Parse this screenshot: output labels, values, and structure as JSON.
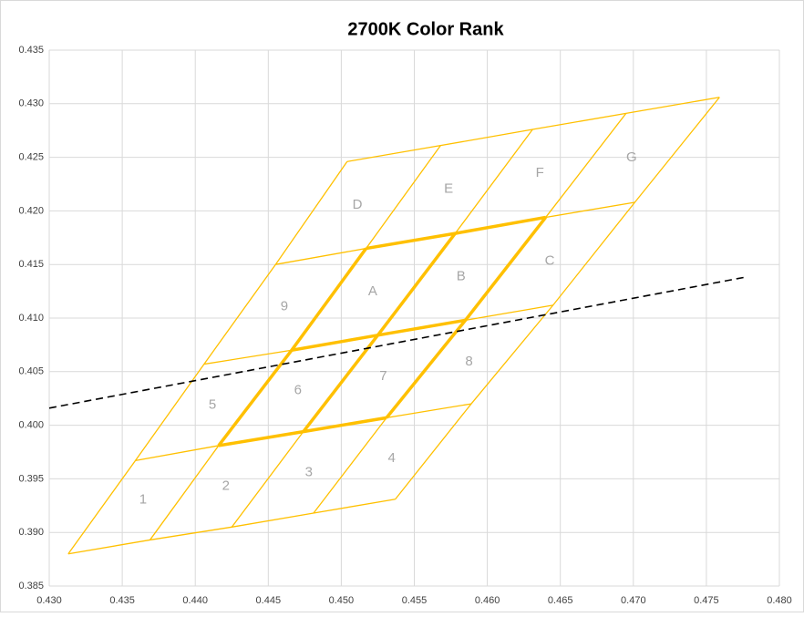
{
  "chart_data": {
    "type": "grid-lines",
    "title": "2700K Color Rank",
    "xlim": [
      0.43,
      0.48
    ],
    "ylim": [
      0.385,
      0.435
    ],
    "xticks": [
      {
        "value": 0.43,
        "label": "0.430"
      },
      {
        "value": 0.435,
        "label": "0.435"
      },
      {
        "value": 0.44,
        "label": "0.440"
      },
      {
        "value": 0.445,
        "label": "0.445"
      },
      {
        "value": 0.45,
        "label": "0.450"
      },
      {
        "value": 0.455,
        "label": "0.455"
      },
      {
        "value": 0.46,
        "label": "0.460"
      },
      {
        "value": 0.465,
        "label": "0.465"
      },
      {
        "value": 0.47,
        "label": "0.470"
      },
      {
        "value": 0.475,
        "label": "0.475"
      },
      {
        "value": 0.48,
        "label": "0.480"
      }
    ],
    "yticks": [
      {
        "value": 0.385,
        "label": "0.385"
      },
      {
        "value": 0.39,
        "label": "0.390"
      },
      {
        "value": 0.395,
        "label": "0.395"
      },
      {
        "value": 0.4,
        "label": "0.400"
      },
      {
        "value": 0.405,
        "label": "0.405"
      },
      {
        "value": 0.41,
        "label": "0.410"
      },
      {
        "value": 0.415,
        "label": "0.415"
      },
      {
        "value": 0.42,
        "label": "0.420"
      },
      {
        "value": 0.425,
        "label": "0.425"
      },
      {
        "value": 0.43,
        "label": "0.430"
      },
      {
        "value": 0.435,
        "label": "0.435"
      }
    ],
    "grid": true,
    "grid_color": "#ffc000",
    "grid_rows": [
      {
        "x": [
          0.4313,
          0.4369,
          0.4425,
          0.4481,
          0.4537
        ],
        "y": [
          0.388,
          0.3893,
          0.3905,
          0.3918,
          0.3931
        ]
      },
      {
        "x": [
          0.4359,
          0.4416,
          0.4474,
          0.4531,
          0.4589
        ],
        "y": [
          0.3967,
          0.3981,
          0.3994,
          0.4007,
          0.402
        ]
      },
      {
        "x": [
          0.4406,
          0.4466,
          0.4525,
          0.4585,
          0.4645
        ],
        "y": [
          0.4057,
          0.407,
          0.4084,
          0.4098,
          0.4112
        ]
      },
      {
        "x": [
          0.4455,
          0.4517,
          0.4578,
          0.464,
          0.4701
        ],
        "y": [
          0.415,
          0.4165,
          0.4179,
          0.4194,
          0.4208
        ]
      },
      {
        "x": [
          0.4504,
          0.4568,
          0.4631,
          0.4695,
          0.4759
        ],
        "y": [
          0.4246,
          0.4261,
          0.4276,
          0.4291,
          0.4306
        ]
      }
    ],
    "bold_lines": [
      1,
      2,
      3
    ],
    "cell_labels": [
      [
        "1",
        "2",
        "3",
        "4"
      ],
      [
        "5",
        "6",
        "7",
        "8"
      ],
      [
        "9",
        "A",
        "B",
        "C"
      ],
      [
        "D",
        "E",
        "F",
        "G"
      ]
    ],
    "series": [
      {
        "color": "#000000",
        "x": [
          0.43,
          0.4776
        ],
        "y": [
          0.4016,
          0.4138
        ]
      }
    ]
  }
}
